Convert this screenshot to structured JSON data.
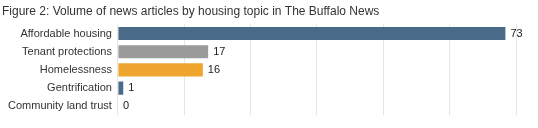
{
  "chart_data": {
    "type": "bar",
    "orientation": "horizontal",
    "title": "Figure 2: Volume of news articles by housing topic in The Buffalo News",
    "categories": [
      "Affordable housing",
      "Tenant protections",
      "Homelessness",
      "Gentrification",
      "Community land trust"
    ],
    "values": [
      73,
      17,
      16,
      1,
      0
    ],
    "colors": [
      "#4a6b88",
      "#9a9a9a",
      "#f0a62e",
      "#4a6b88",
      "#9a9a9a"
    ],
    "xlim": [
      0,
      75
    ],
    "xticks": [
      0,
      12.5,
      25,
      37.5,
      50,
      62.5,
      75
    ],
    "grid": true,
    "data_labels": true,
    "tick_labels": "y"
  }
}
